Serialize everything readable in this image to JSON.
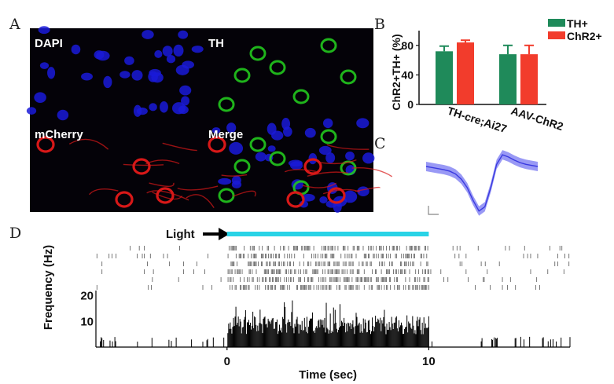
{
  "panel_labels": {
    "a": "A",
    "b": "B",
    "c": "C",
    "d": "D"
  },
  "micrograph": {
    "labels": [
      "DAPI",
      "TH",
      "mCherry",
      "Merge"
    ],
    "colors": {
      "background": "#040208",
      "nuclei": "#1a1ad8",
      "th": "#22c81e",
      "mcherry": "#d81818"
    }
  },
  "chart_b": {
    "type": "bar",
    "ylabel": "ChR2+TH+ (%)",
    "yticks": [
      0,
      40,
      80
    ],
    "ylim": [
      0,
      100
    ],
    "categories": [
      "TH-cre;Ai27",
      "AAV-ChR2"
    ],
    "series": [
      {
        "name": "TH+",
        "color": "#1f8a5a",
        "values": [
          72,
          68
        ],
        "errors": [
          7,
          12
        ]
      },
      {
        "name": "ChR2+",
        "color": "#f23c2c",
        "values": [
          84,
          68
        ],
        "errors": [
          3,
          12
        ]
      }
    ],
    "legend_position": "top-right"
  },
  "chart_c": {
    "type": "line",
    "description_color": "#3a3ae0",
    "band_color": "#7f7ff2",
    "waveform": [
      0.0,
      -0.05,
      -0.1,
      -0.15,
      -0.22,
      -0.35,
      -0.6,
      -1.0,
      -1.6,
      -2.1,
      -1.9,
      -1.0,
      0.1,
      0.55,
      0.45,
      0.3,
      0.18,
      0.1,
      0.05,
      0.0
    ]
  },
  "chart_d": {
    "type": "raster_histogram",
    "light_label": "Light",
    "light_color": "#29d3e6",
    "light_window": [
      0,
      10
    ],
    "xlabel": "Time (sec)",
    "ylabel": "Frequency (Hz)",
    "xticks": [
      0,
      10
    ],
    "yticks": [
      10,
      20
    ],
    "xlim": [
      -6.5,
      17
    ],
    "ylim": [
      0,
      22
    ],
    "baseline_hz": 1.5,
    "light_hz": 10,
    "raster_trials": 6
  }
}
